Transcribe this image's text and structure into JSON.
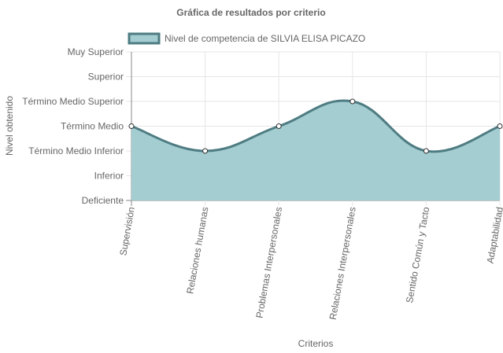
{
  "chart_data": {
    "type": "area",
    "title": "Gráfica de resultados por criterio",
    "xlabel": "Criterios",
    "ylabel": "Nivel obtenido",
    "y_levels": [
      "Deficiente",
      "Inferior",
      "Término Medio Inferior",
      "Término Medio",
      "Término Medio Superior",
      "Superior",
      "Muy Superior"
    ],
    "categories": [
      "Supervisión",
      "Relaciones humanas",
      "Problemas Interpersonales",
      "Relaciones Interpersonales",
      "Sentido Común y Tacto",
      "Adaptabilidad"
    ],
    "series": [
      {
        "name": "Nivel de competencia de SILVIA ELISA PICAZO",
        "values": [
          3,
          2,
          3,
          4,
          2,
          3
        ],
        "values_labels": [
          "Término Medio",
          "Término Medio Inferior",
          "Término Medio",
          "Término Medio Superior",
          "Término Medio Inferior",
          "Término Medio"
        ]
      }
    ],
    "ylim": [
      0,
      6
    ],
    "grid": true,
    "legend": "top",
    "colors": {
      "fill": "#a3cdd0",
      "stroke": "#4e7c82",
      "grid": "#e6e6e6",
      "axis": "#888888",
      "point_fill": "#ffffff"
    }
  }
}
